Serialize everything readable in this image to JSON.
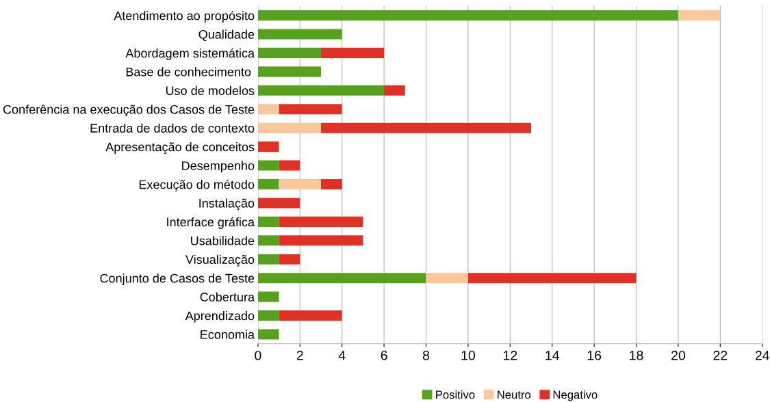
{
  "chart_data": {
    "type": "bar",
    "orientation": "horizontal",
    "stacked": true,
    "categories": [
      "Atendimento ao propósito",
      "Qualidade",
      "Abordagem sistemática",
      "Base de conhecimento ",
      "Uso de modelos",
      "Conferência na execução dos Casos de Teste",
      "Entrada de dados de contexto",
      "Apresentação de conceitos",
      "Desempenho",
      "Execução do método",
      "Instalação",
      "Interface gráfica",
      "Usabilidade",
      "Visualização",
      "Conjunto de Casos de Teste",
      "Cobertura",
      "Aprendizado",
      "Economia"
    ],
    "series": [
      {
        "name": "Positivo",
        "color": "#58a11f",
        "values": [
          20,
          4,
          3,
          3,
          6,
          0,
          0,
          0,
          1,
          1,
          0,
          1,
          1,
          1,
          8,
          1,
          1,
          1
        ]
      },
      {
        "name": "Neutro",
        "color": "#f9c99b",
        "values": [
          2,
          0,
          0,
          0,
          0,
          1,
          3,
          0,
          0,
          2,
          0,
          0,
          0,
          0,
          2,
          0,
          0,
          0
        ]
      },
      {
        "name": "Negativo",
        "color": "#e03127",
        "values": [
          0,
          0,
          3,
          0,
          1,
          3,
          10,
          1,
          1,
          1,
          2,
          4,
          4,
          1,
          8,
          0,
          3,
          0
        ]
      }
    ],
    "xlim": [
      0,
      24
    ],
    "xticks": [
      0,
      2,
      4,
      6,
      8,
      10,
      12,
      14,
      16,
      18,
      20,
      22,
      24
    ],
    "grid": "x",
    "legend": "bottom"
  }
}
